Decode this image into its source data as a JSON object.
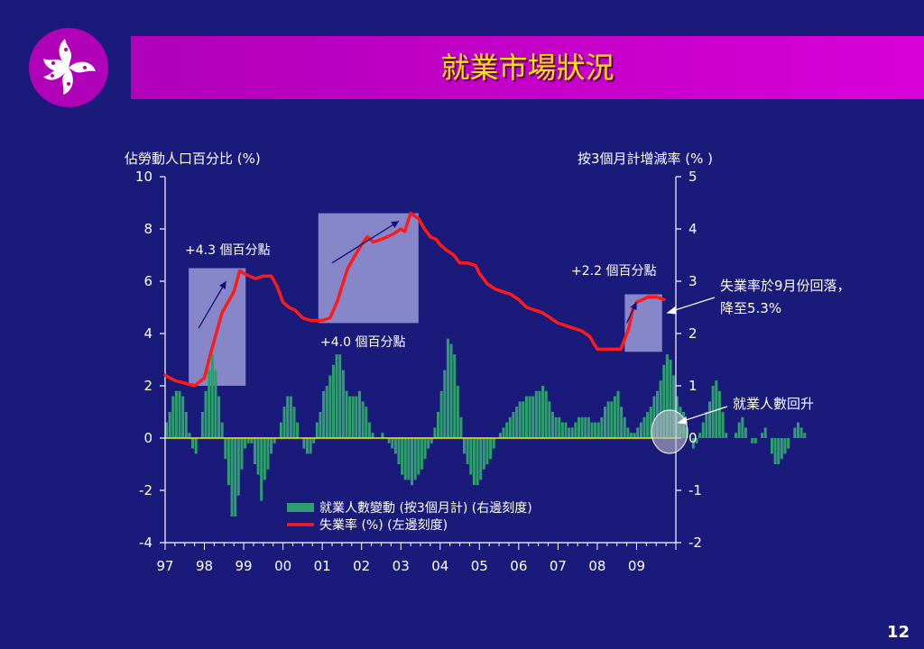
{
  "slide": {
    "title": "就業市場狀況",
    "page_number": "12",
    "colors": {
      "background": "#1a1a7a",
      "title_bar": "#c000c8",
      "title_text": "#ffe400",
      "logo_circle": "#b000b8",
      "bar": "#2e9e6e",
      "line": "#ff1a1a",
      "box": "#9a9ad6"
    }
  },
  "chart_data": {
    "type": "bar",
    "left_axis_title": "佔勞動人口百分比 (%)",
    "right_axis_title": "按3個月計增減率 (% )",
    "left_ylim": [
      -4,
      10
    ],
    "left_ticks": [
      "10",
      "8",
      "6",
      "4",
      "2",
      "0",
      "-2",
      "-4"
    ],
    "right_ylim": [
      -2,
      5
    ],
    "right_ticks": [
      "5",
      "4",
      "3",
      "2",
      "1",
      "0",
      "-1",
      "-2"
    ],
    "x_range": [
      1997,
      2010
    ],
    "x_tick_labels": [
      "97",
      "98",
      "99",
      "00",
      "01",
      "02",
      "03",
      "04",
      "05",
      "06",
      "07",
      "08",
      "09"
    ],
    "legend": [
      {
        "label": "就業人數變動 (按3個月計) (右邊刻度)",
        "kind": "bar"
      },
      {
        "label": "失業率 (%) (左邊刻度)",
        "kind": "line"
      }
    ],
    "annotations": [
      {
        "text": "+4.3 個百分點"
      },
      {
        "text": "+4.0 個百分點"
      },
      {
        "text": "+2.2 個百分點"
      },
      {
        "text_lines": [
          "失業率於9月份回落，",
          "降至5.3%"
        ]
      },
      {
        "text": "就業人數回升"
      }
    ],
    "unemployment_rate": {
      "axis": "left",
      "x": [
        1997.0,
        1997.25,
        1997.5,
        1997.75,
        1998.0,
        1998.15,
        1998.3,
        1998.45,
        1998.6,
        1998.75,
        1998.9,
        1999.0,
        1999.15,
        1999.3,
        1999.5,
        1999.7,
        1999.85,
        2000.0,
        2000.15,
        2000.3,
        2000.5,
        2000.7,
        2000.85,
        2001.0,
        2001.2,
        2001.4,
        2001.5,
        2001.65,
        2001.8,
        2002.0,
        2002.15,
        2002.3,
        2002.5,
        2002.65,
        2002.8,
        2003.0,
        2003.1,
        2003.25,
        2003.35,
        2003.45,
        2003.6,
        2003.75,
        2003.9,
        2004.0,
        2004.15,
        2004.35,
        2004.5,
        2004.7,
        2004.9,
        2005.0,
        2005.2,
        2005.4,
        2005.6,
        2005.8,
        2006.0,
        2006.2,
        2006.4,
        2006.6,
        2006.8,
        2007.0,
        2007.2,
        2007.4,
        2007.6,
        2007.8,
        2008.0,
        2008.2,
        2008.4,
        2008.6,
        2008.8,
        2008.9,
        2009.0,
        2009.15,
        2009.3,
        2009.5,
        2009.7
      ],
      "values": [
        2.4,
        2.2,
        2.1,
        2.0,
        2.3,
        3.2,
        4.0,
        4.8,
        5.2,
        5.6,
        6.4,
        6.3,
        6.2,
        6.1,
        6.2,
        6.2,
        5.8,
        5.2,
        5.0,
        4.9,
        4.6,
        4.5,
        4.5,
        4.5,
        4.6,
        5.3,
        5.8,
        6.5,
        6.9,
        7.4,
        7.7,
        7.5,
        7.6,
        7.7,
        7.8,
        8.0,
        7.9,
        8.6,
        8.5,
        8.4,
        8.0,
        7.7,
        7.6,
        7.4,
        7.2,
        7.0,
        6.7,
        6.7,
        6.6,
        6.3,
        5.9,
        5.7,
        5.6,
        5.5,
        5.3,
        5.0,
        4.9,
        4.8,
        4.6,
        4.4,
        4.3,
        4.2,
        4.1,
        3.9,
        3.4,
        3.4,
        3.4,
        3.4,
        4.2,
        4.9,
        5.2,
        5.3,
        5.4,
        5.4,
        5.3
      ]
    },
    "employment_change": {
      "axis": "right",
      "start": 1997.0,
      "step": 0.0833,
      "values": [
        0.3,
        0.5,
        0.8,
        0.9,
        0.9,
        0.8,
        0.5,
        0.1,
        -0.2,
        -0.3,
        0.0,
        0.5,
        0.9,
        1.3,
        1.6,
        1.3,
        0.8,
        0.3,
        -0.4,
        -0.9,
        -1.5,
        -1.5,
        -1.1,
        -0.6,
        -0.2,
        -0.1,
        -0.1,
        -0.5,
        -0.7,
        -1.2,
        -0.8,
        -0.6,
        -0.3,
        -0.1,
        0.0,
        0.3,
        0.6,
        0.8,
        0.8,
        0.6,
        0.3,
        0.0,
        -0.2,
        -0.3,
        -0.3,
        -0.1,
        0.3,
        0.5,
        0.9,
        1.0,
        1.2,
        1.4,
        1.6,
        1.6,
        1.3,
        0.9,
        0.8,
        0.8,
        0.8,
        0.9,
        0.7,
        0.6,
        0.3,
        0.1,
        0.0,
        0.0,
        0.1,
        0.0,
        -0.1,
        -0.2,
        -0.3,
        -0.5,
        -0.7,
        -0.8,
        -0.8,
        -0.9,
        -0.8,
        -0.7,
        -0.6,
        -0.4,
        -0.2,
        -0.1,
        0.2,
        0.5,
        0.9,
        1.3,
        1.9,
        1.8,
        1.6,
        1.0,
        0.4,
        -0.3,
        -0.5,
        -0.7,
        -0.9,
        -0.9,
        -0.8,
        -0.6,
        -0.5,
        -0.4,
        -0.2,
        0.0,
        0.1,
        0.2,
        0.3,
        0.4,
        0.5,
        0.6,
        0.7,
        0.7,
        0.8,
        0.8,
        0.8,
        0.9,
        0.9,
        1.0,
        0.9,
        0.7,
        0.5,
        0.4,
        0.4,
        0.3,
        0.3,
        0.2,
        0.2,
        0.3,
        0.4,
        0.4,
        0.4,
        0.4,
        0.3,
        0.3,
        0.3,
        0.4,
        0.6,
        0.7,
        0.7,
        0.8,
        0.9,
        0.6,
        0.4,
        0.2,
        0.1,
        0.1,
        0.2,
        0.3,
        0.4,
        0.5,
        0.6,
        0.8,
        0.9,
        1.1,
        1.4,
        1.6,
        1.5,
        1.2,
        0.8,
        0.6,
        0.5,
        0.2,
        0.0,
        -0.2,
        -0.1,
        0.1,
        0.3,
        0.5,
        0.7,
        1.0,
        1.1,
        0.9,
        0.5,
        0.1,
        0.0,
        0.0,
        0.1,
        0.3,
        0.4,
        0.2,
        0.0,
        -0.1,
        -0.1,
        0.0,
        0.1,
        0.2,
        0.0,
        -0.3,
        -0.5,
        -0.5,
        -0.4,
        -0.3,
        -0.2,
        0.0,
        0.2,
        0.3,
        0.2,
        0.1
      ]
    }
  }
}
